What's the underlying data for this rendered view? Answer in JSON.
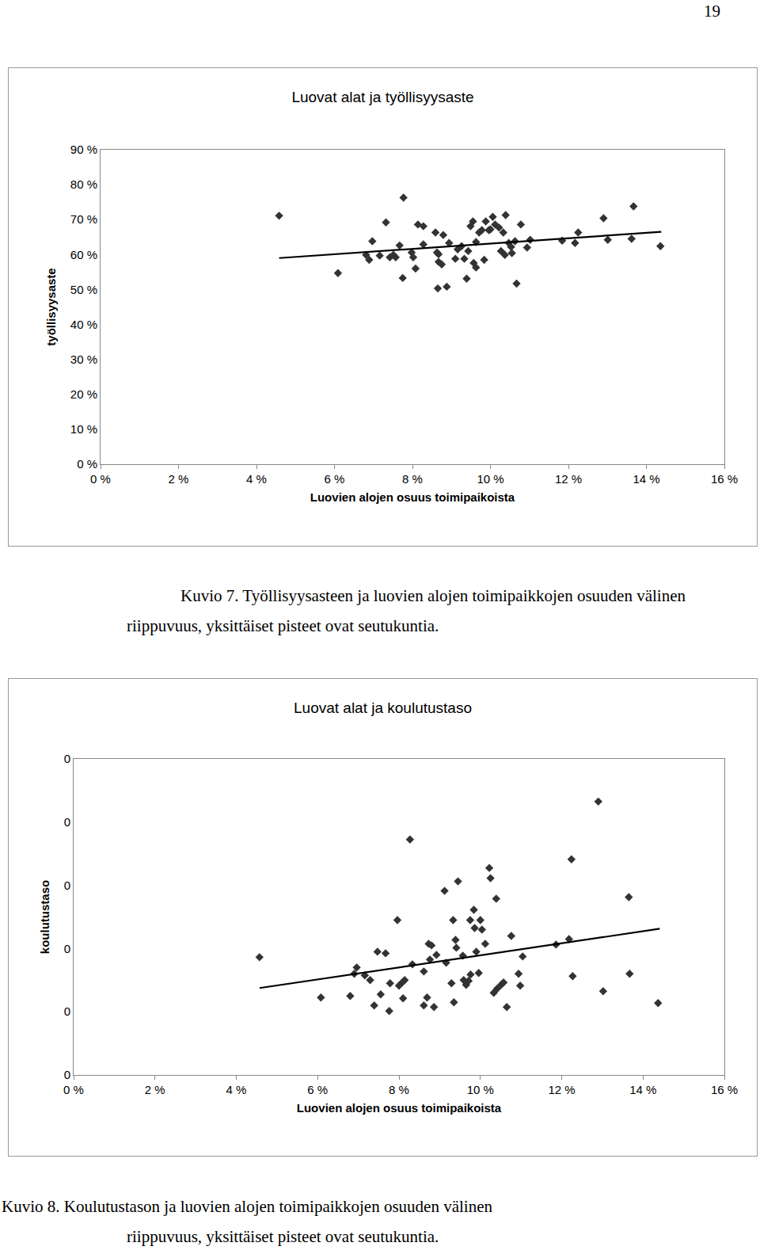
{
  "page_number": "19",
  "chart_data": [
    {
      "type": "scatter",
      "title": "Luovat alat ja työllisyysaste",
      "x_label": "Luovien alojen osuus toimipaikoista",
      "y_label": "työllisyysaste",
      "color": "#333333",
      "marker": "diamond",
      "grid": false,
      "x": [
        4.58,
        6.09,
        6.97,
        6.81,
        6.89,
        7.16,
        7.32,
        7.42,
        7.51,
        7.57,
        7.67,
        7.75,
        7.77,
        7.98,
        8.02,
        8.08,
        8.14,
        8.28,
        8.28,
        8.59,
        8.63,
        8.67,
        8.67,
        8.75,
        8.65,
        8.79,
        8.88,
        8.94,
        9.1,
        9.16,
        9.26,
        9.33,
        9.39,
        9.43,
        9.49,
        9.55,
        9.57,
        9.63,
        9.63,
        9.71,
        9.78,
        9.84,
        9.88,
        9.96,
        10.0,
        10.06,
        10.12,
        10.22,
        10.27,
        10.33,
        10.37,
        10.39,
        10.47,
        10.53,
        10.55,
        10.63,
        10.67,
        10.78,
        10.94,
        11.02,
        11.84,
        12.17,
        12.25,
        12.9,
        13.01,
        13.62,
        13.67,
        14.36
      ],
      "values": [
        71.1,
        54.7,
        63.8,
        59.9,
        58.5,
        59.7,
        69.2,
        59.2,
        59.9,
        59.2,
        62.6,
        53.3,
        76.3,
        60.6,
        59.2,
        56.0,
        68.6,
        68.1,
        62.9,
        66.3,
        60.6,
        60.1,
        57.9,
        57.2,
        50.3,
        65.6,
        50.8,
        63.3,
        58.8,
        61.5,
        62.4,
        58.8,
        53.1,
        61.0,
        68.1,
        69.5,
        57.6,
        56.3,
        63.6,
        66.3,
        67.0,
        58.5,
        69.5,
        67.0,
        67.2,
        70.8,
        68.6,
        67.7,
        61.0,
        66.3,
        59.9,
        71.3,
        63.3,
        62.2,
        60.4,
        63.8,
        51.7,
        68.6,
        62.0,
        64.2,
        64.0,
        63.3,
        66.3,
        70.4,
        64.2,
        64.5,
        73.8,
        62.4
      ],
      "trendline": {
        "x": [
          4.58,
          14.38
        ],
        "values": [
          59.0,
          66.5
        ],
        "color": "#000000",
        "line_style": "solid"
      },
      "xlim": [
        0,
        16
      ],
      "xticks": [
        {
          "value": 0,
          "label": "0 %"
        },
        {
          "value": 2,
          "label": "2 %"
        },
        {
          "value": 4,
          "label": "4 %"
        },
        {
          "value": 6,
          "label": "6 %"
        },
        {
          "value": 8,
          "label": "8 %"
        },
        {
          "value": 10,
          "label": "10 %"
        },
        {
          "value": 12,
          "label": "12 %"
        },
        {
          "value": 14,
          "label": "14 %"
        },
        {
          "value": 16,
          "label": "16 %"
        }
      ],
      "ylim": [
        0,
        90
      ],
      "yticks": [
        {
          "value": 0,
          "label": "0 %"
        },
        {
          "value": 10,
          "label": "10 %"
        },
        {
          "value": 20,
          "label": "20 %"
        },
        {
          "value": 30,
          "label": "30 %"
        },
        {
          "value": 40,
          "label": "40 %"
        },
        {
          "value": 50,
          "label": "50 %"
        },
        {
          "value": 60,
          "label": "60 %"
        },
        {
          "value": 70,
          "label": "70 %"
        },
        {
          "value": 80,
          "label": "80 %"
        },
        {
          "value": 90,
          "label": "90 %"
        }
      ]
    },
    {
      "type": "scatter",
      "title": "Luovat alat ja koulutustaso",
      "x_label": "Luovien alojen osuus toimipaikoista",
      "y_label": "koulutustaso",
      "color": "#333333",
      "marker": "diamond",
      "grid": false,
      "x": [
        4.57,
        6.08,
        6.8,
        6.9,
        6.96,
        7.16,
        7.29,
        7.39,
        7.47,
        7.55,
        7.67,
        7.76,
        7.78,
        7.96,
        8.0,
        8.08,
        8.1,
        8.14,
        8.27,
        8.33,
        8.61,
        8.61,
        8.69,
        8.73,
        8.76,
        8.8,
        8.86,
        8.92,
        9.12,
        9.16,
        9.29,
        9.33,
        9.35,
        9.39,
        9.41,
        9.45,
        9.57,
        9.59,
        9.65,
        9.71,
        9.75,
        9.76,
        9.84,
        9.86,
        9.9,
        9.96,
        10.0,
        10.04,
        10.12,
        10.22,
        10.25,
        10.33,
        10.39,
        10.41,
        10.51,
        10.57,
        10.65,
        10.76,
        10.94,
        10.98,
        11.04,
        11.86,
        12.18,
        12.24,
        12.27,
        12.9,
        13.02,
        13.65,
        13.67,
        14.37
      ],
      "values": [
        0.149,
        0.098,
        0.1,
        0.128,
        0.136,
        0.126,
        0.12,
        0.088,
        0.156,
        0.102,
        0.154,
        0.081,
        0.116,
        0.196,
        0.113,
        0.117,
        0.097,
        0.12,
        0.298,
        0.14,
        0.088,
        0.131,
        0.098,
        0.166,
        0.146,
        0.164,
        0.086,
        0.152,
        0.233,
        0.142,
        0.116,
        0.196,
        0.092,
        0.171,
        0.161,
        0.245,
        0.151,
        0.12,
        0.114,
        0.119,
        0.196,
        0.127,
        0.209,
        0.186,
        0.156,
        0.129,
        0.196,
        0.184,
        0.166,
        0.262,
        0.249,
        0.104,
        0.223,
        0.109,
        0.114,
        0.117,
        0.086,
        0.176,
        0.128,
        0.113,
        0.15,
        0.165,
        0.172,
        0.273,
        0.125,
        0.346,
        0.106,
        0.225,
        0.128,
        0.091
      ],
      "trendline": {
        "x": [
          4.57,
          14.41
        ],
        "values": [
          0.11,
          0.185
        ],
        "color": "#000000",
        "line_style": "solid"
      },
      "xlim": [
        0,
        16
      ],
      "xticks": [
        {
          "value": 0,
          "label": "0 %"
        },
        {
          "value": 2,
          "label": "2 %"
        },
        {
          "value": 4,
          "label": "4 %"
        },
        {
          "value": 6,
          "label": "6 %"
        },
        {
          "value": 8,
          "label": "8 %"
        },
        {
          "value": 10,
          "label": "10 %"
        },
        {
          "value": 12,
          "label": "12 %"
        },
        {
          "value": 14,
          "label": "14 %"
        },
        {
          "value": 16,
          "label": "16 %"
        }
      ],
      "ylim": [
        0,
        0.4
      ],
      "yticks": [
        {
          "value": 0,
          "label": "0"
        },
        {
          "value": 0.08,
          "label": "0"
        },
        {
          "value": 0.16,
          "label": "0"
        },
        {
          "value": 0.24,
          "label": "0"
        },
        {
          "value": 0.32,
          "label": "0"
        },
        {
          "value": 0.4,
          "label": "0"
        }
      ]
    }
  ],
  "captions": [
    [
      "Kuvio 7. Työllisyysasteen ja luovien alojen toimipaikkojen osuuden välinen",
      "riippuvuus, yksittäiset pisteet ovat seutukuntia."
    ],
    [
      "Kuvio 8. Koulutustason ja luovien alojen toimipaikkojen osuuden välinen",
      "riippuvuus, yksittäiset pisteet ovat seutukuntia."
    ]
  ]
}
